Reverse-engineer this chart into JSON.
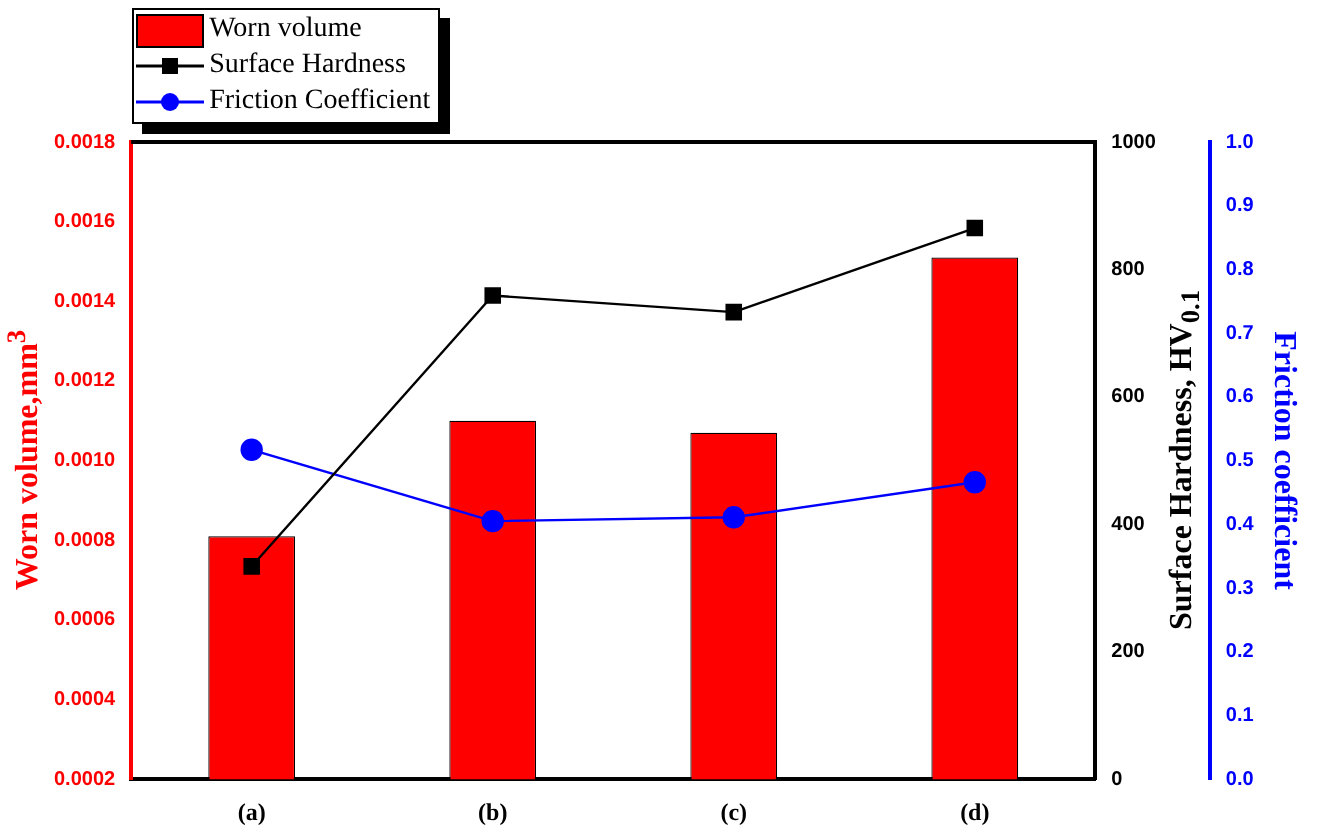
{
  "chart_data": {
    "type": "bar",
    "categories": [
      "(a)",
      "(b)",
      "(c)",
      "(d)"
    ],
    "ylabel": "Worn volume,mm$^{3}$",
    "y2label": "Surface Hardness, HV$_{0.1}$",
    "y3label": "Friction coefficient",
    "ylim": [
      0.0002,
      0.0018
    ],
    "yticks": [
      0.0002,
      0.0004,
      0.0006,
      0.0008,
      {
        "value": 0.001,
        "label": "0.0010"
      },
      0.0012,
      0.0014,
      0.0016,
      0.0018
    ],
    "y2lim": [
      0,
      1000
    ],
    "y2ticks": [
      0,
      200,
      400,
      600,
      800,
      1000
    ],
    "y3lim": [
      0,
      1
    ],
    "y3ticks": [
      {
        "value": 0,
        "label": "0.0"
      },
      0.1,
      0.2,
      0.3,
      0.4,
      0.5,
      0.6,
      0.7,
      0.8,
      0.9,
      {
        "value": 1,
        "label": "1.0"
      }
    ],
    "series": [
      {
        "name": "Worn volume",
        "color": "#ff0000",
        "values": [
          0.00081,
          0.0011,
          0.00107,
          0.00151
        ]
      },
      {
        "name": "Surface Hardness",
        "type": "line",
        "axis": "y2",
        "marker": "square",
        "color": "#000000",
        "values": [
          334,
          759,
          733,
          865
        ]
      },
      {
        "name": "Friction Coefficient",
        "type": "line",
        "axis": "y3",
        "marker": "circle",
        "color": "#0000ff",
        "values": [
          0.517,
          0.405,
          0.411,
          0.466
        ]
      }
    ],
    "grid": false,
    "legend": "top left"
  }
}
